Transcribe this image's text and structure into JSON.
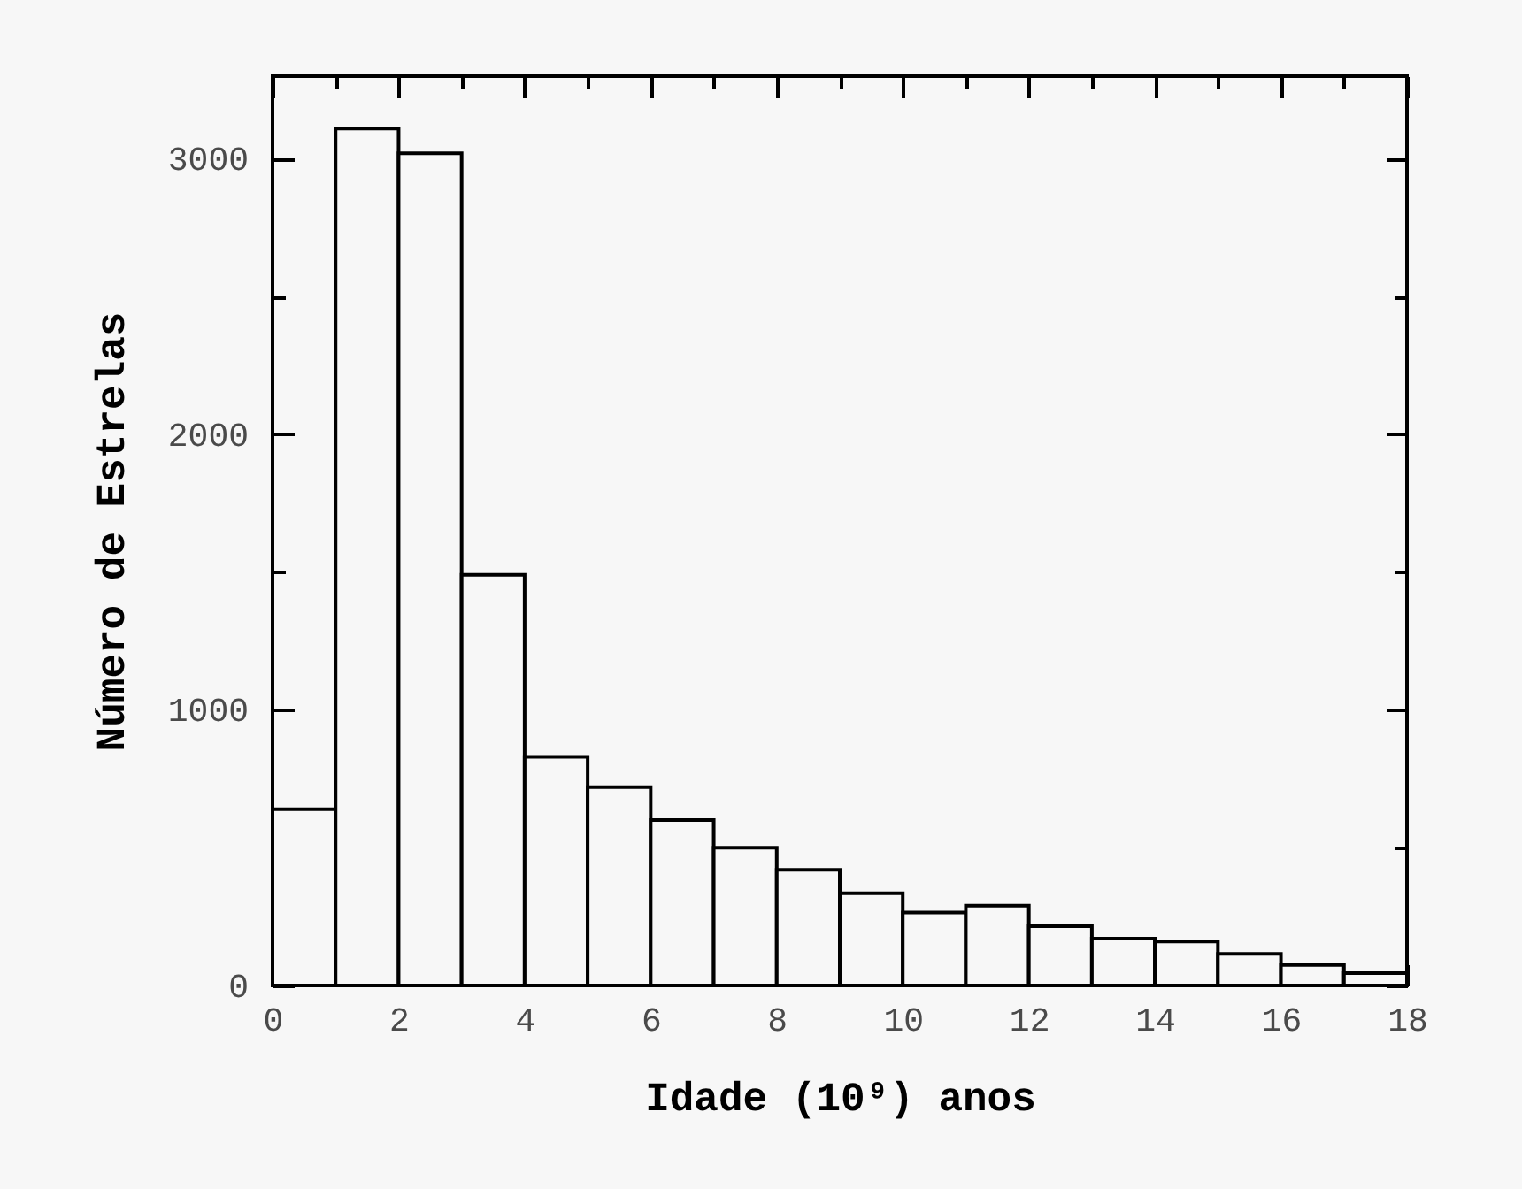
{
  "chart_data": {
    "type": "histogram",
    "xlabel": "Idade (10⁹) anos",
    "ylabel": "Número de Estrelas",
    "bins": [
      0,
      1,
      2,
      3,
      4,
      5,
      6,
      7,
      8,
      9,
      10,
      11,
      12,
      13,
      14,
      15,
      16,
      17,
      18
    ],
    "values": [
      640,
      3110,
      3020,
      1490,
      830,
      720,
      600,
      500,
      420,
      335,
      265,
      290,
      215,
      170,
      160,
      115,
      75,
      45
    ],
    "color": "#000000",
    "xlim": [
      0,
      18
    ],
    "xticks": [
      0,
      {
        "value": 1,
        "label": null
      },
      2,
      {
        "value": 3,
        "label": null
      },
      4,
      {
        "value": 5,
        "label": null
      },
      6,
      {
        "value": 7,
        "label": null
      },
      8,
      {
        "value": 9,
        "label": null
      },
      10,
      {
        "value": 11,
        "label": null
      },
      12,
      {
        "value": 13,
        "label": null
      },
      14,
      {
        "value": 15,
        "label": null
      },
      16,
      {
        "value": 17,
        "label": null
      },
      18
    ],
    "ylim": [
      0,
      3300
    ],
    "yticks": [
      0,
      {
        "value": 500,
        "label": null
      },
      1000,
      {
        "value": 1500,
        "label": null
      },
      2000,
      {
        "value": 2500,
        "label": null
      },
      3000
    ]
  }
}
